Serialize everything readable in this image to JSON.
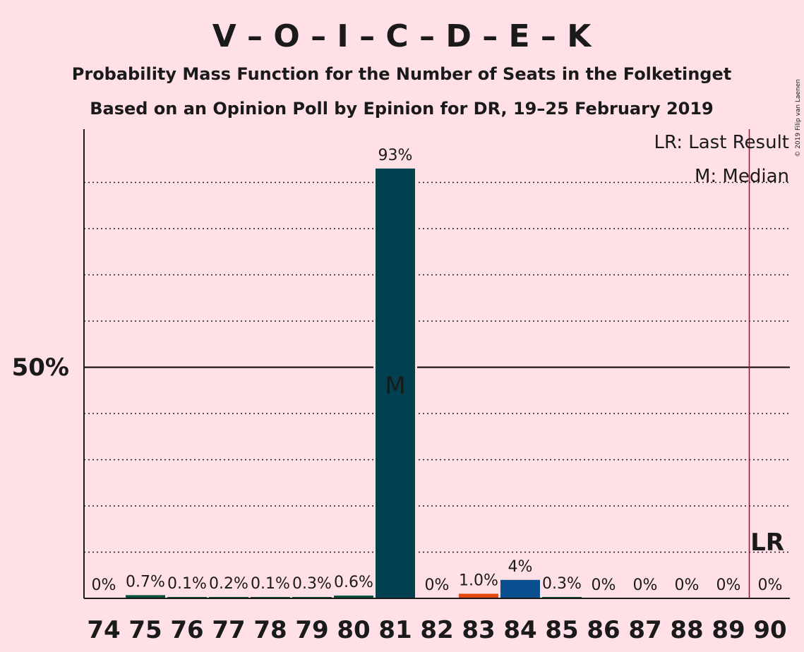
{
  "title": "V – O – I – C – D – E – K",
  "subtitle_1": "Probability Mass Function for the Number of Seats in the Folketinget",
  "subtitle_2": "Based on an Opinion Poll by Epinion for DR, 19–25 February 2019",
  "copyright": "© 2019 Filip van Laenen",
  "legend": {
    "last_result": "LR: Last Result",
    "median": "M: Median"
  },
  "y_tick_label": "50%",
  "median_marker": "M",
  "last_result_marker": "LR",
  "colors": {
    "background": "#ffe0e6",
    "main_bar": "#024050",
    "small_bar": "#04503a",
    "bar_83": "#e04a10",
    "bar_84": "#0a4f90",
    "last_result_line": "#b0003a"
  },
  "chart_data": {
    "type": "bar",
    "categories": [
      "74",
      "75",
      "76",
      "77",
      "78",
      "79",
      "80",
      "81",
      "82",
      "83",
      "84",
      "85",
      "86",
      "87",
      "88",
      "89",
      "90"
    ],
    "values": [
      0,
      0.7,
      0.1,
      0.2,
      0.1,
      0.3,
      0.6,
      93,
      0,
      1.0,
      4,
      0.3,
      0,
      0,
      0,
      0,
      0
    ],
    "value_labels": [
      "0%",
      "0.7%",
      "0.1%",
      "0.2%",
      "0.1%",
      "0.3%",
      "0.6%",
      "93%",
      "0%",
      "1.0%",
      "4%",
      "0.3%",
      "0%",
      "0%",
      "0%",
      "0%",
      "0%"
    ],
    "ylim": [
      0,
      100
    ],
    "y_ticks": [
      50
    ],
    "gridlines": "dotted every 10%",
    "median_seats": "81",
    "last_result_seats": 89.5,
    "legend_position": "top-right"
  }
}
